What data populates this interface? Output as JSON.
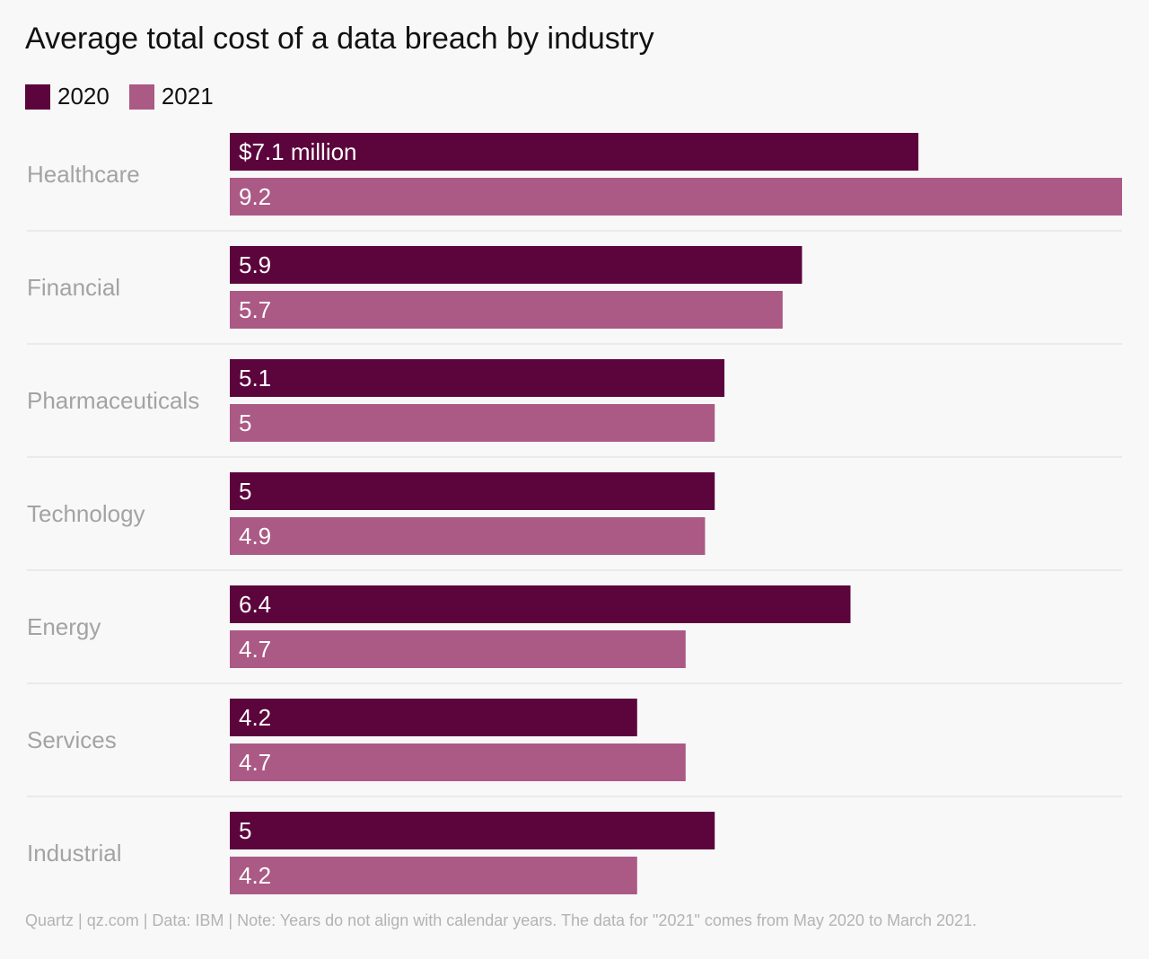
{
  "title": "Average total cost of a data breach by industry",
  "footer": "Quartz | qz.com | Data: IBM | Note: Years do not align with calendar years. The data for \"2021\" comes from May 2020 to March 2021.",
  "chart_data": {
    "type": "bar",
    "orientation": "horizontal",
    "grid": false,
    "legend_placement": "top-left",
    "categories": [
      "Healthcare",
      "Financial",
      "Pharmaceuticals",
      "Technology",
      "Energy",
      "Services",
      "Industrial"
    ],
    "series": [
      {
        "name": "2020",
        "color": "#5c053c",
        "values": [
          7.1,
          5.9,
          5.1,
          5,
          6.4,
          4.2,
          5
        ],
        "labels": [
          "$7.1 million",
          "5.9",
          "5.1",
          "5",
          "6.4",
          "4.2",
          "5"
        ]
      },
      {
        "name": "2021",
        "color": "#ab5985",
        "values": [
          9.2,
          5.7,
          5,
          4.9,
          4.7,
          4.7,
          4.2
        ],
        "labels": [
          "9.2",
          "5.7",
          "5",
          "4.9",
          "4.7",
          "4.7",
          "4.2"
        ]
      }
    ],
    "xlim": [
      0,
      9.2
    ],
    "title": "Average total cost of a data breach by industry"
  }
}
